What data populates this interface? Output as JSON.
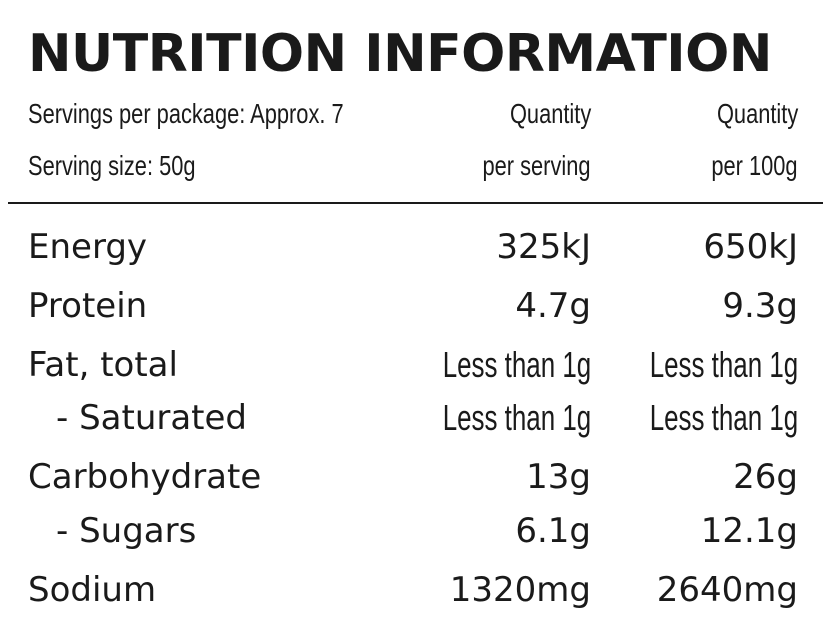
{
  "title": "NUTRITION INFORMATION",
  "header": {
    "servings_per_package": "Servings per package: Approx. 7",
    "serving_size": "Serving size: 50g",
    "col1_line1": "Quantity",
    "col1_line2": "per serving",
    "col2_line1": "Quantity",
    "col2_line2": "per 100g"
  },
  "rows": [
    {
      "label": "Energy",
      "per_serving": "325kJ",
      "per_100g": "650kJ"
    },
    {
      "label": "Protein",
      "per_serving": "4.7g",
      "per_100g": "9.3g"
    },
    {
      "label": "Fat, total",
      "per_serving": "Less than 1g",
      "per_100g": "Less than 1g"
    },
    {
      "label": "- Saturated",
      "per_serving": "Less than 1g",
      "per_100g": "Less than 1g"
    },
    {
      "label": "Carbohydrate",
      "per_serving": "13g",
      "per_100g": "26g"
    },
    {
      "label": "- Sugars",
      "per_serving": "6.1g",
      "per_100g": "12.1g"
    },
    {
      "label": "Sodium",
      "per_serving": "1320mg",
      "per_100g": "2640mg"
    }
  ]
}
